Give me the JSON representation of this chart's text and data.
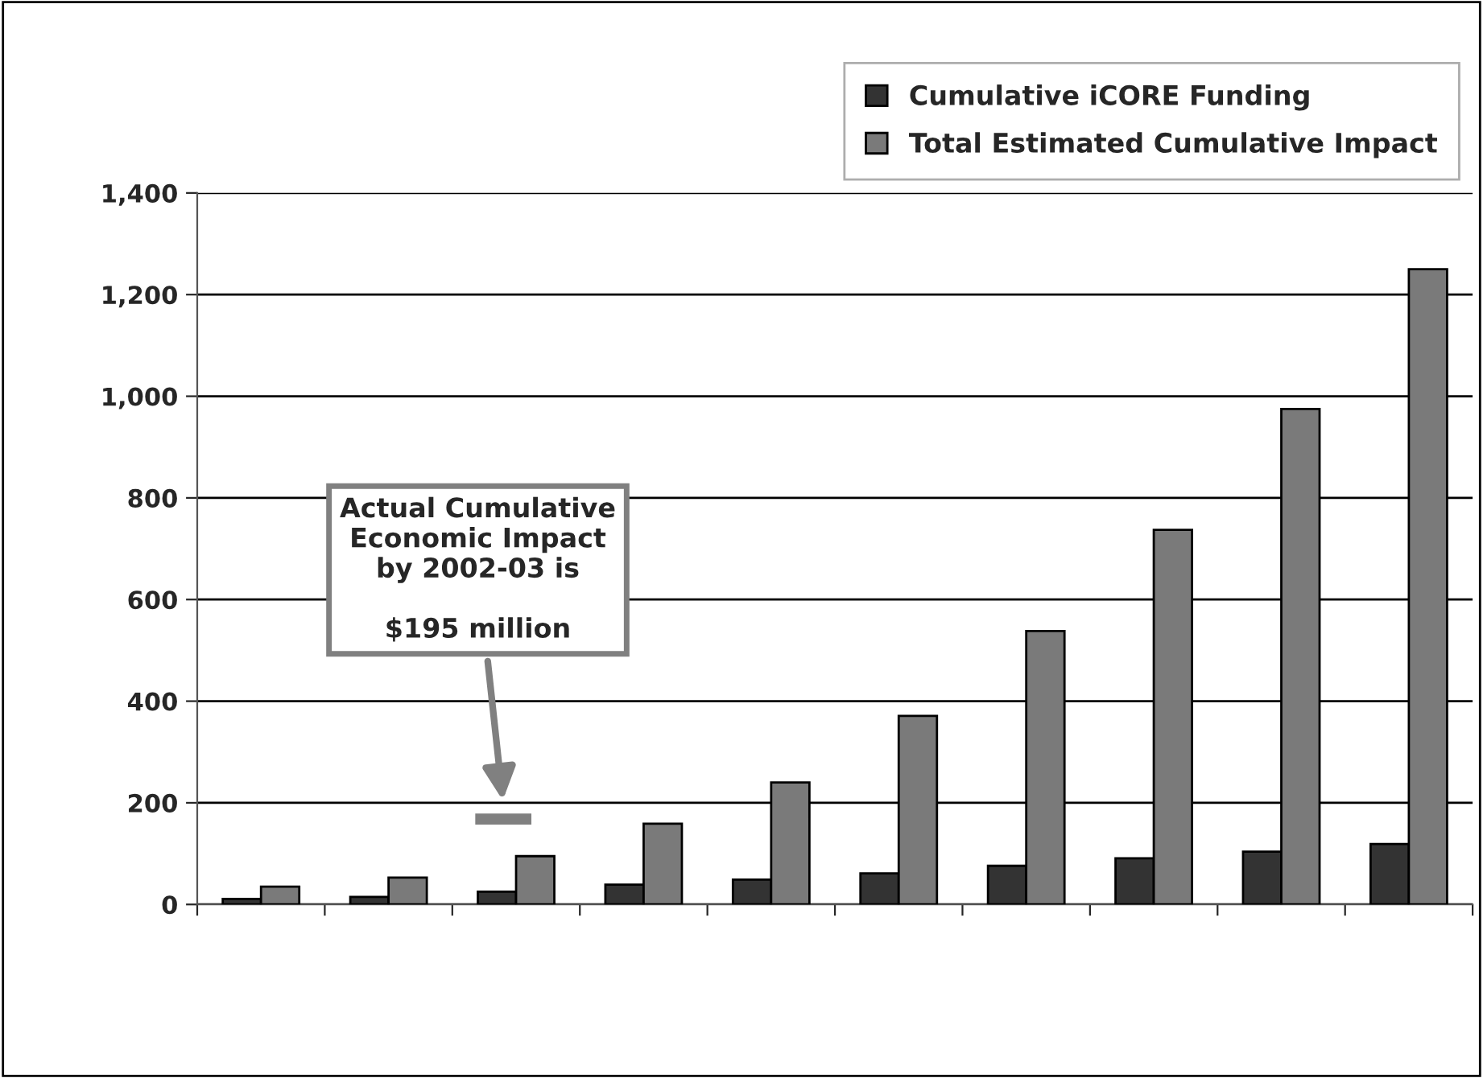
{
  "chart_data": {
    "type": "bar",
    "categories": [
      null,
      null,
      null,
      null,
      null,
      null,
      null,
      null,
      null,
      null
    ],
    "series": [
      {
        "name": "Cumulative iCORE Funding",
        "color": "#333333",
        "values": [
          11,
          15,
          25,
          39,
          49,
          61,
          76,
          91,
          104,
          119
        ]
      },
      {
        "name": "Total Estimated Cumulative Impact",
        "color": "#7a7a7a",
        "values": [
          35,
          53,
          95,
          159,
          240,
          371,
          538,
          737,
          975,
          1250
        ]
      }
    ],
    "ylim": [
      0,
      1400
    ],
    "yticks": [
      0,
      {
        "value": 200,
        "label": "200"
      },
      {
        "value": 400,
        "label": "400"
      },
      {
        "value": 600,
        "label": "600"
      },
      {
        "value": 800,
        "label": "800"
      },
      {
        "value": 1000,
        "label": "1,000"
      },
      {
        "value": 1200,
        "label": "1,200"
      },
      {
        "value": 1400,
        "label": "1,400"
      }
    ],
    "grid": "y",
    "legend": "top right",
    "annotations": [
      "Actual Cumulative\nEconomic Impact\nby 2002-03 is\n\n$195 million"
    ]
  }
}
